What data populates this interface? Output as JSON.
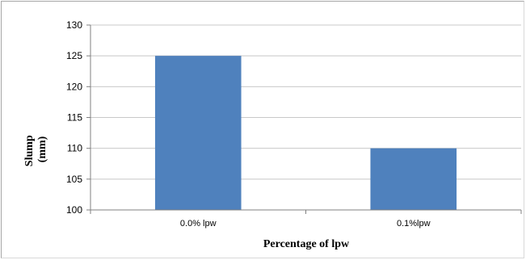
{
  "chart_data": {
    "type": "bar",
    "categories": [
      "0.0% lpw",
      "0.1%lpw"
    ],
    "values": [
      125,
      110
    ],
    "title": "",
    "xlabel": "Percentage of lpw",
    "ylabel_lines": [
      "Slump",
      "(mm)"
    ],
    "ylim": [
      100,
      130
    ],
    "yticks": [
      100,
      105,
      110,
      115,
      120,
      125,
      130
    ],
    "grid": true,
    "legend": "none",
    "bar_color": "#4f81bd",
    "grid_color": "#c8c8c8"
  }
}
